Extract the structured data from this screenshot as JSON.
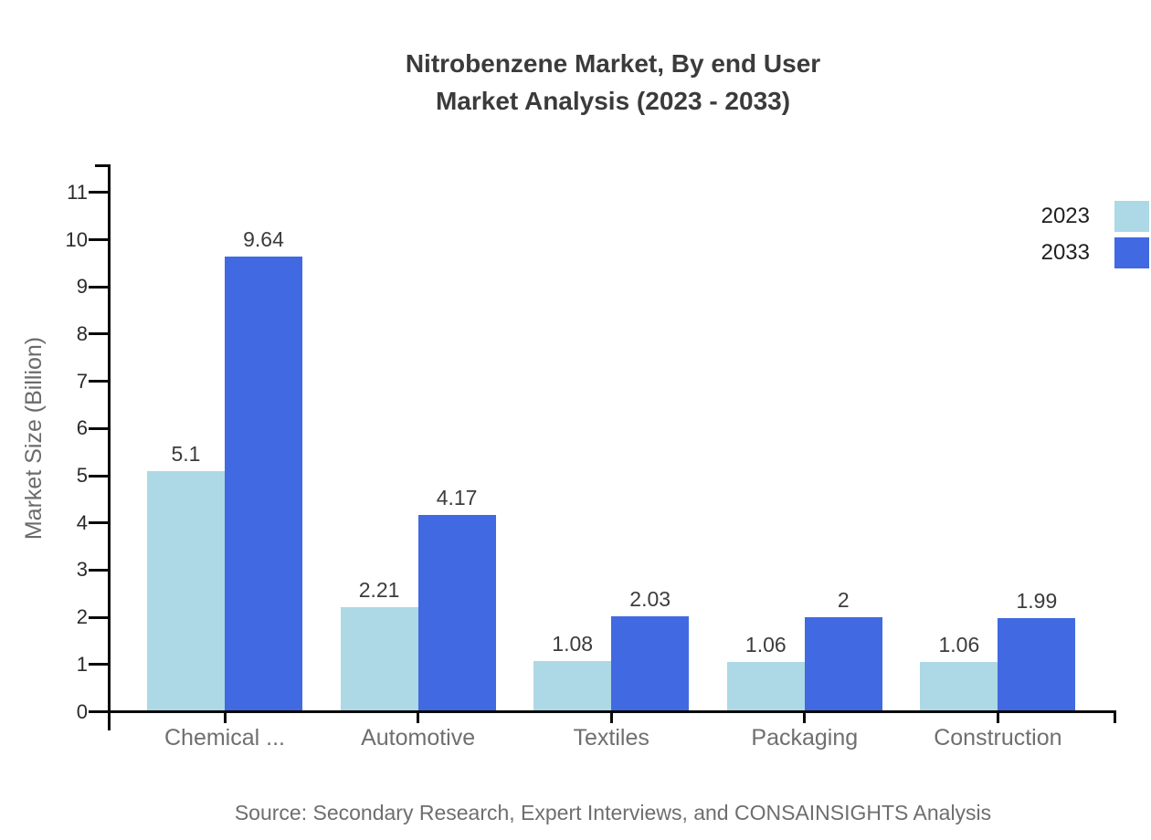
{
  "title": {
    "line1": "Nitrobenzene Market, By end User",
    "line2": "Market Analysis (2023 - 2033)"
  },
  "source": "Source: Secondary Research, Expert Interviews, and CONSAINSIGHTS Analysis",
  "chart_data": {
    "type": "bar",
    "title": "Nitrobenzene Market, By end User Market Analysis (2023 - 2033)",
    "categories": [
      "Chemical ...",
      "Automotive",
      "Textiles",
      "Packaging",
      "Construction"
    ],
    "series": [
      {
        "name": "2023",
        "color": "#ADD8E6",
        "values": [
          5.1,
          2.21,
          1.08,
          1.06,
          1.06
        ],
        "labels": [
          "5.1",
          "2.21",
          "1.08",
          "1.06",
          "1.06"
        ]
      },
      {
        "name": "2033",
        "color": "#4169E1",
        "values": [
          9.64,
          4.17,
          2.03,
          2,
          1.99
        ],
        "labels": [
          "9.64",
          "4.17",
          "2.03",
          "2",
          "1.99"
        ]
      }
    ],
    "xlabel": "",
    "ylabel": "Market Size (Billion)",
    "ylim": [
      0,
      11
    ],
    "yticks": [
      0,
      1,
      2,
      3,
      4,
      5,
      6,
      7,
      8,
      9,
      10,
      11
    ],
    "grid": false,
    "legend_position": "top-right",
    "value_labels_shown": true,
    "axis_color": "#0a0a0a",
    "text_colors": {
      "title": "#3b3b3b",
      "tick": "#2b2b2b",
      "category": "#6f6f6f",
      "value": "#3c3c3c",
      "muted": "#6e6e6e"
    }
  }
}
